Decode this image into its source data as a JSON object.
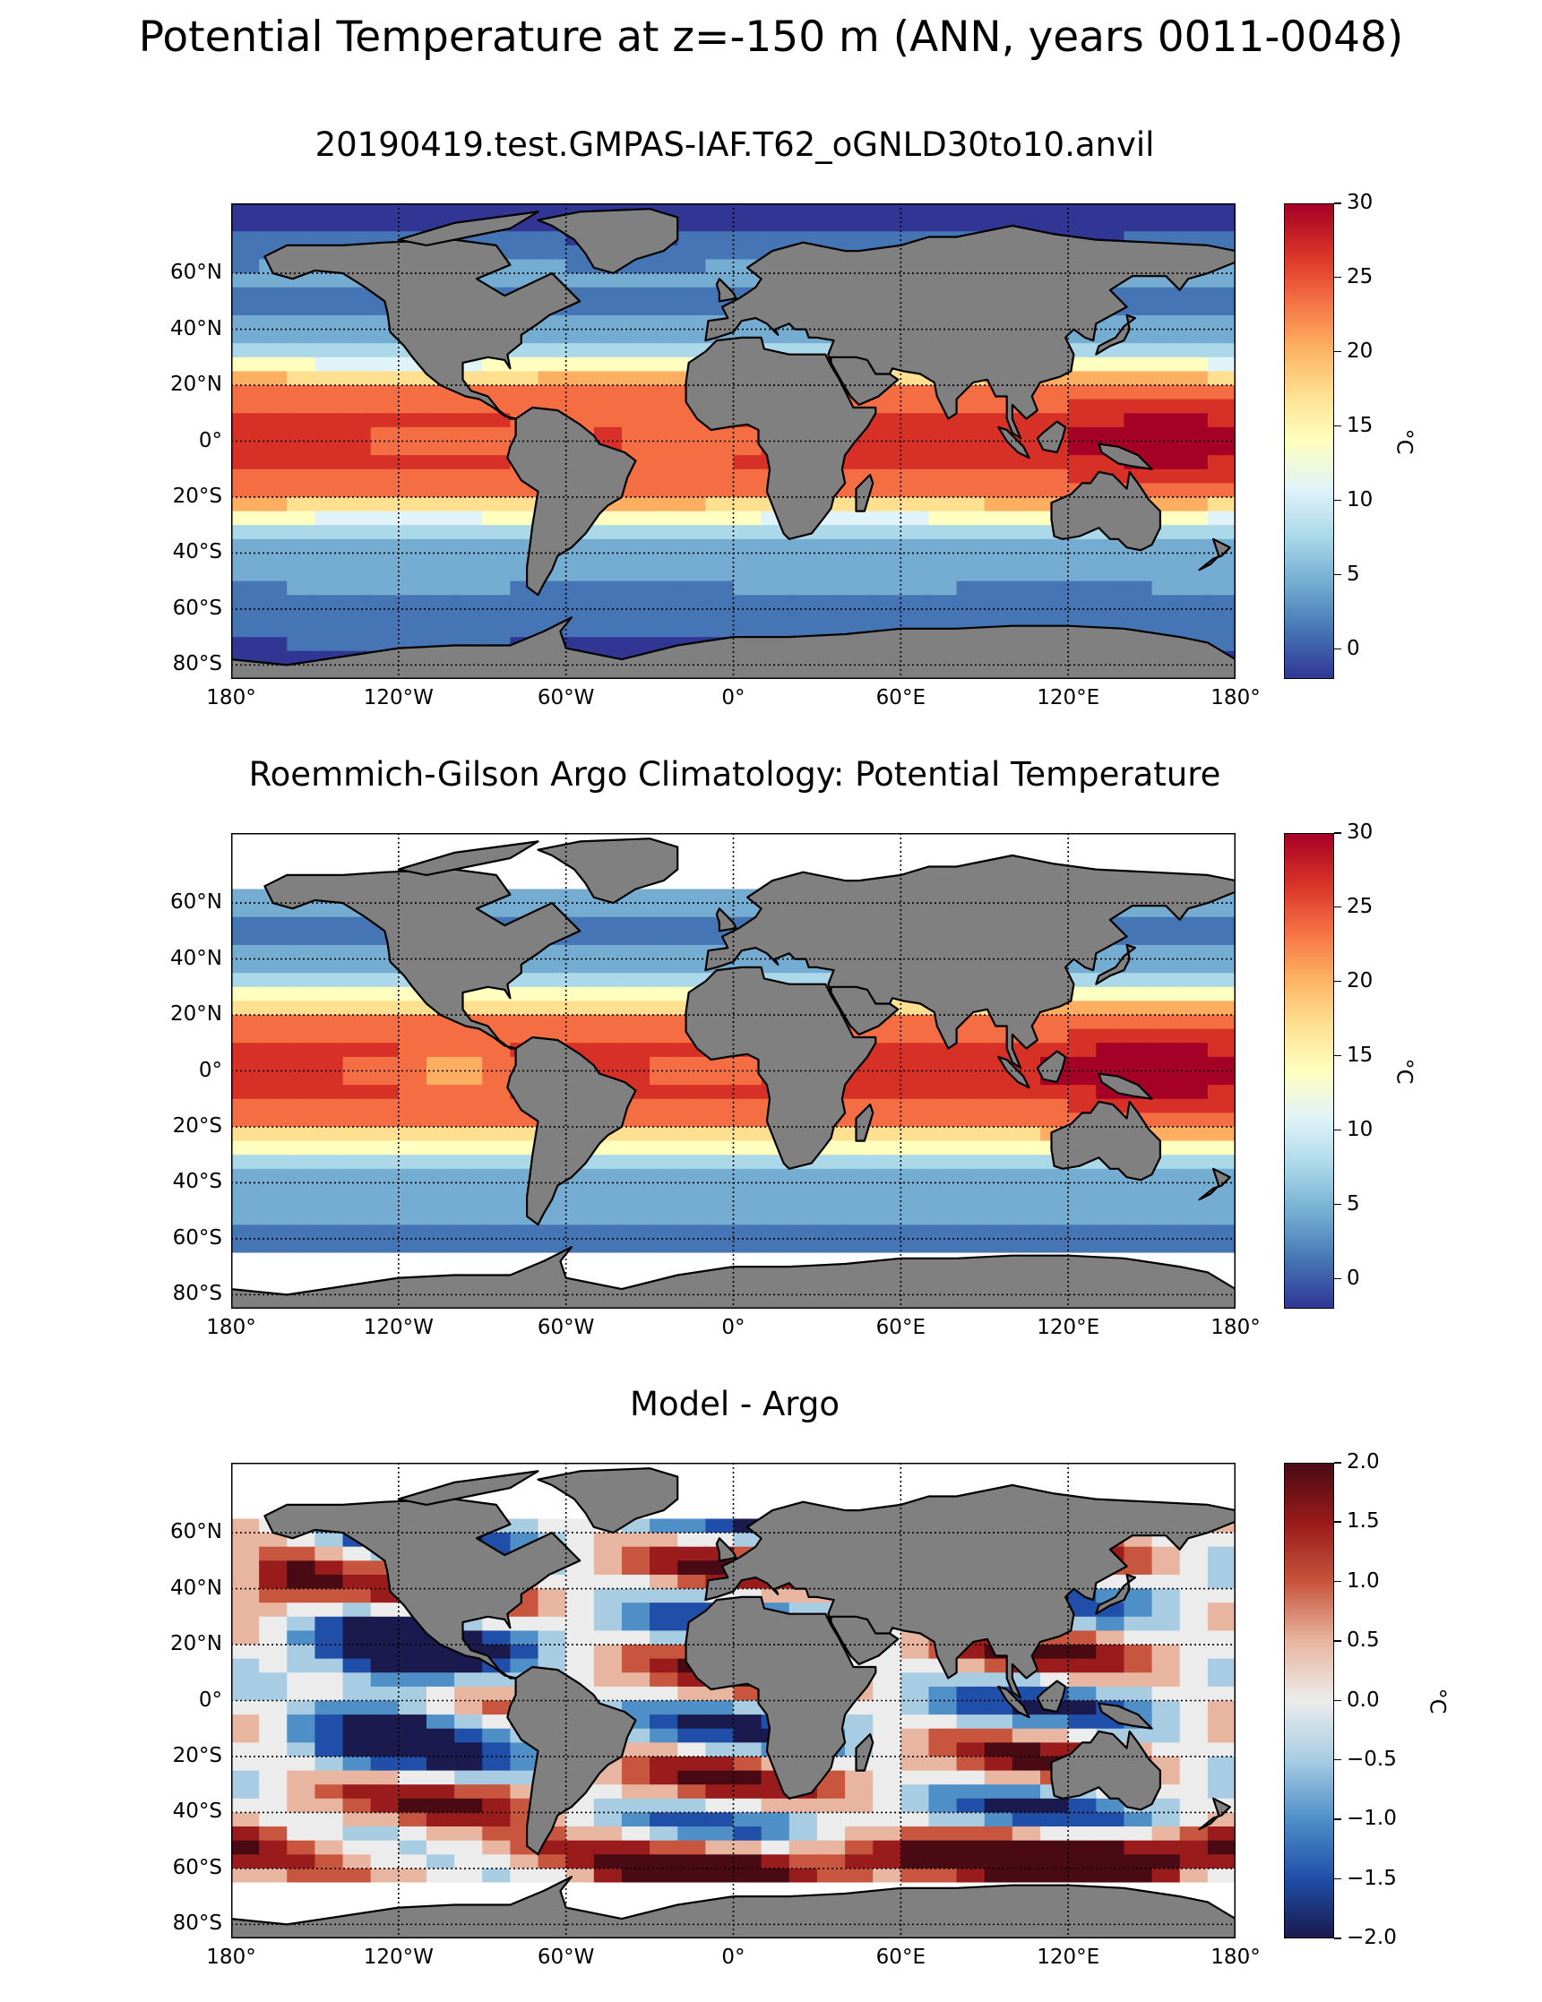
{
  "figure": {
    "title": "Potential Temperature at z=-150 m (ANN, years 0011-0048)"
  },
  "panels": [
    {
      "id": "model",
      "title": "20190419.test.GMPAS-IAF.T62_oGNLD30to10.anvil",
      "colorbar": {
        "ticks": [
          "30",
          "25",
          "20",
          "15",
          "10",
          "5",
          "0"
        ],
        "units": "°C",
        "min": -2,
        "max": 30,
        "colormap": "RdYlBu_r"
      }
    },
    {
      "id": "obs",
      "title": "Roemmich-Gilson Argo Climatology: Potential Temperature",
      "colorbar": {
        "ticks": [
          "30",
          "25",
          "20",
          "15",
          "10",
          "5",
          "0"
        ],
        "units": "°C",
        "min": -2,
        "max": 30,
        "colormap": "RdYlBu_r"
      }
    },
    {
      "id": "diff",
      "title": "Model - Argo",
      "colorbar": {
        "ticks": [
          "2.0",
          "1.5",
          "1.0",
          "0.5",
          "0.0",
          "−0.5",
          "−1.0",
          "−1.5",
          "−2.0"
        ],
        "units": "°C",
        "min": -2,
        "max": 2,
        "colormap": "RdBu_r"
      }
    }
  ],
  "axes": {
    "lat_labels": [
      "60°N",
      "40°N",
      "20°N",
      "0°",
      "20°S",
      "40°S",
      "60°S",
      "80°S"
    ],
    "lon_labels": [
      "180°",
      "120°W",
      "60°W",
      "0°",
      "60°E",
      "120°E",
      "180°"
    ],
    "lat_range": [
      -85,
      85
    ],
    "lon_range": [
      -180,
      180
    ]
  },
  "colors": {
    "land": "#808080",
    "coastline": "#000000",
    "missing": "#ffffff"
  }
}
